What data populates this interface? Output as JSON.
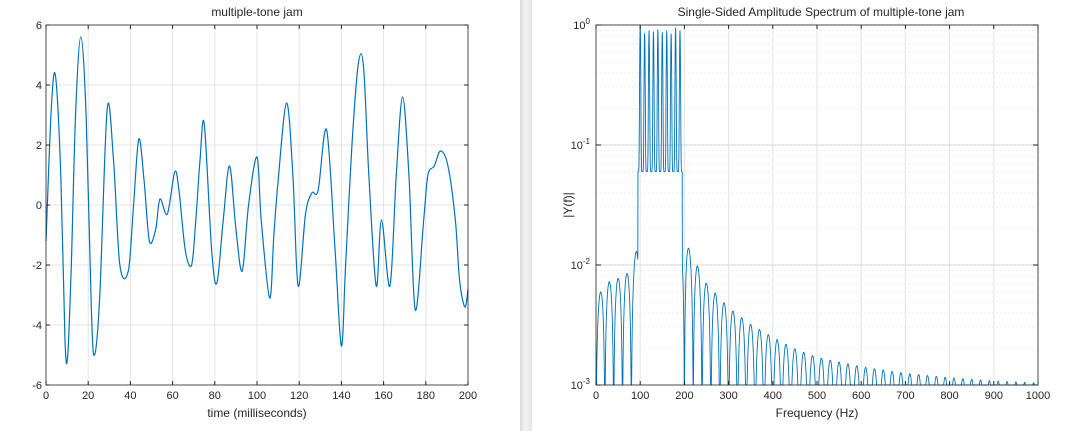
{
  "colors": {
    "line": "#0072BD",
    "grid": "#e3e3e3",
    "axes": "#262626"
  },
  "chart_data": [
    {
      "type": "line",
      "title": "multiple-tone jam",
      "xlabel": "time (milliseconds)",
      "ylabel": "",
      "xlim": [
        0,
        200
      ],
      "ylim": [
        -6,
        6
      ],
      "xticks": [
        "0",
        "20",
        "40",
        "60",
        "80",
        "100",
        "120",
        "140",
        "160",
        "180",
        "200"
      ],
      "yticks": [
        "-6",
        "-4",
        "-2",
        "0",
        "2",
        "4",
        "6"
      ],
      "grid": true,
      "x": [
        0,
        2.5,
        4.5,
        7,
        9,
        10.3,
        12,
        14,
        16.5,
        19,
        21.5,
        23,
        25.5,
        29,
        32,
        35,
        39,
        41.5,
        44,
        46.5,
        49,
        52,
        54,
        57.5,
        61,
        63,
        66,
        69,
        71,
        73,
        75,
        78.5,
        81,
        84,
        87,
        90,
        93,
        96,
        100,
        102,
        106,
        108,
        110,
        114,
        117,
        119.5,
        123,
        126,
        129,
        133,
        137,
        140,
        142,
        145,
        148,
        150.5,
        153,
        156.5,
        159,
        163,
        166,
        169,
        172,
        175,
        179,
        181,
        184,
        187,
        190.5,
        194,
        196,
        198.5,
        200
      ],
      "y": [
        -1.2,
        3.2,
        4.3,
        1.0,
        -4.5,
        -5.0,
        -2.0,
        3.0,
        5.6,
        3.0,
        -3.5,
        -5.0,
        -3.0,
        3.2,
        1.5,
        -2.0,
        -2.2,
        0.0,
        2.2,
        0.8,
        -1.2,
        -0.8,
        0.2,
        -0.3,
        1.1,
        0.5,
        -1.5,
        -2.0,
        -0.5,
        1.5,
        2.7,
        -1.5,
        -2.6,
        -0.5,
        1.3,
        -0.8,
        -2.2,
        0.0,
        1.6,
        -0.5,
        -3.1,
        -1.0,
        0.8,
        3.4,
        1.0,
        -2.7,
        -0.3,
        0.4,
        0.5,
        2.5,
        -1.5,
        -4.7,
        -2.0,
        2.0,
        4.7,
        4.6,
        1.0,
        -2.7,
        -0.5,
        -2.7,
        1.0,
        3.6,
        1.0,
        -3.5,
        -0.5,
        1.0,
        1.3,
        1.8,
        1.3,
        -0.5,
        -2.5,
        -3.4,
        -2.8
      ]
    },
    {
      "type": "line",
      "title": "Single-Sided Amplitude Spectrum of multiple-tone jam",
      "xlabel": "Frequency (Hz)",
      "ylabel": "|Y(f)|",
      "xlim": [
        0,
        1000
      ],
      "ylim": [
        0.001,
        1
      ],
      "yscale": "log",
      "xticks": [
        "0",
        "100",
        "200",
        "300",
        "400",
        "500",
        "600",
        "700",
        "800",
        "900",
        "1000"
      ],
      "ytick_labels": [
        {
          "base": "10",
          "exp": "0"
        },
        {
          "base": "10",
          "exp": "-1"
        },
        {
          "base": "10",
          "exp": "-2"
        },
        {
          "base": "10",
          "exp": "-3"
        }
      ],
      "grid": true,
      "tone_frequencies": [
        100,
        110,
        120,
        130,
        140,
        150,
        160,
        170,
        180,
        190
      ],
      "tone_amplitudes": [
        1.0,
        0.86,
        0.9,
        0.88,
        0.92,
        0.87,
        0.9,
        0.85,
        0.95,
        0.9
      ],
      "notch_spacing_hz": 20,
      "envelope_f": [
        0,
        20,
        40,
        60,
        80,
        95,
        205,
        220,
        250,
        300,
        350,
        400,
        450,
        500,
        600,
        700,
        800,
        900,
        1000
      ],
      "envelope_y": [
        0.005,
        0.007,
        0.0075,
        0.008,
        0.009,
        0.015,
        0.015,
        0.0115,
        0.007,
        0.0044,
        0.0032,
        0.0025,
        0.002,
        0.0017,
        0.00142,
        0.00125,
        0.00115,
        0.00108,
        0.00104
      ]
    }
  ]
}
